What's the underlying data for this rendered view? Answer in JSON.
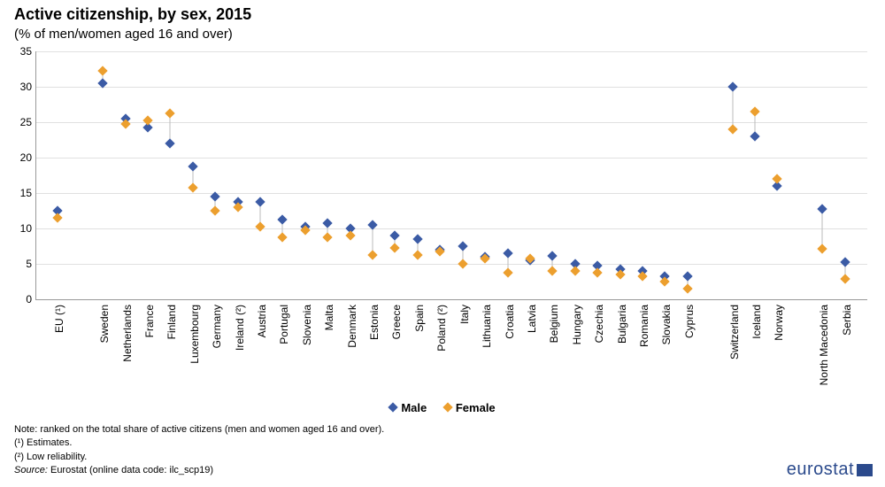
{
  "title": "Active citizenship, by sex, 2015",
  "subtitle": "(% of men/women  aged 16 and over)",
  "chart": {
    "type": "scatter",
    "ylim": [
      0,
      35
    ],
    "ytick_step": 5,
    "background_color": "#ffffff",
    "grid_color": "#e0e0e0",
    "axis_color": "#999999",
    "connector_color": "#bbbbbb",
    "label_fontsize": 12,
    "title_fontsize": 18,
    "marker_size": 8,
    "marker_shape": "diamond",
    "series": [
      {
        "key": "male",
        "label": "Male",
        "color": "#3b5ba5"
      },
      {
        "key": "female",
        "label": "Female",
        "color": "#ec9f2e"
      }
    ],
    "categories": [
      {
        "label": "EU (¹)",
        "gap_before": 0,
        "male": 12.5,
        "female": 11.5
      },
      {
        "label": "Sweden",
        "gap_before": 1,
        "male": 30.5,
        "female": 32.3
      },
      {
        "label": "Netherlands",
        "gap_before": 0,
        "male": 25.5,
        "female": 24.8
      },
      {
        "label": "France",
        "gap_before": 0,
        "male": 24.2,
        "female": 25.3
      },
      {
        "label": "Finland",
        "gap_before": 0,
        "male": 22.0,
        "female": 26.3
      },
      {
        "label": "Luxembourg",
        "gap_before": 0,
        "male": 18.8,
        "female": 15.8
      },
      {
        "label": "Germany",
        "gap_before": 0,
        "male": 14.5,
        "female": 12.5
      },
      {
        "label": "Ireland (²)",
        "gap_before": 0,
        "male": 13.8,
        "female": 13.0
      },
      {
        "label": "Austria",
        "gap_before": 0,
        "male": 13.8,
        "female": 10.3
      },
      {
        "label": "Portugal",
        "gap_before": 0,
        "male": 11.3,
        "female": 8.8
      },
      {
        "label": "Slovenia",
        "gap_before": 0,
        "male": 10.3,
        "female": 9.8
      },
      {
        "label": "Malta",
        "gap_before": 0,
        "male": 10.7,
        "female": 8.8
      },
      {
        "label": "Denmark",
        "gap_before": 0,
        "male": 10.0,
        "female": 9.0
      },
      {
        "label": "Estonia",
        "gap_before": 0,
        "male": 10.5,
        "female": 6.3
      },
      {
        "label": "Greece",
        "gap_before": 0,
        "male": 9.0,
        "female": 7.2
      },
      {
        "label": "Spain",
        "gap_before": 0,
        "male": 8.5,
        "female": 6.2
      },
      {
        "label": "Poland (²)",
        "gap_before": 0,
        "male": 7.0,
        "female": 6.8
      },
      {
        "label": "Italy",
        "gap_before": 0,
        "male": 7.5,
        "female": 5.0
      },
      {
        "label": "Lithuania",
        "gap_before": 0,
        "male": 6.0,
        "female": 5.8
      },
      {
        "label": "Croatia",
        "gap_before": 0,
        "male": 6.5,
        "female": 3.7
      },
      {
        "label": "Latvia",
        "gap_before": 0,
        "male": 5.5,
        "female": 5.7
      },
      {
        "label": "Belgium",
        "gap_before": 0,
        "male": 6.1,
        "female": 4.0
      },
      {
        "label": "Hungary",
        "gap_before": 0,
        "male": 5.0,
        "female": 4.0
      },
      {
        "label": "Czechia",
        "gap_before": 0,
        "male": 4.8,
        "female": 3.7
      },
      {
        "label": "Bulgaria",
        "gap_before": 0,
        "male": 4.2,
        "female": 3.5
      },
      {
        "label": "Romania",
        "gap_before": 0,
        "male": 4.0,
        "female": 3.2
      },
      {
        "label": "Slovakia",
        "gap_before": 0,
        "male": 3.2,
        "female": 2.5
      },
      {
        "label": "Cyprus",
        "gap_before": 0,
        "male": 3.2,
        "female": 1.5
      },
      {
        "label": "Switzerland",
        "gap_before": 1,
        "male": 30.0,
        "female": 24.0
      },
      {
        "label": "Iceland",
        "gap_before": 0,
        "male": 23.0,
        "female": 26.5
      },
      {
        "label": "Norway",
        "gap_before": 0,
        "male": 16.0,
        "female": 17.0
      },
      {
        "label": "North Macedonia",
        "gap_before": 1,
        "male": 12.8,
        "female": 7.1
      },
      {
        "label": "Serbia",
        "gap_before": 0,
        "male": 5.3,
        "female": 2.9
      }
    ]
  },
  "notes": {
    "line1": "Note: ranked on the total share of active citizens (men and women aged 16 and over).",
    "line2": "(¹) Estimates.",
    "line3": "(²) Low reliability.",
    "source_label": "Source:",
    "source_text": " Eurostat (online data code: ilc_scp19)"
  },
  "logo": {
    "text": "eurostat",
    "color": "#2b4a8c"
  }
}
